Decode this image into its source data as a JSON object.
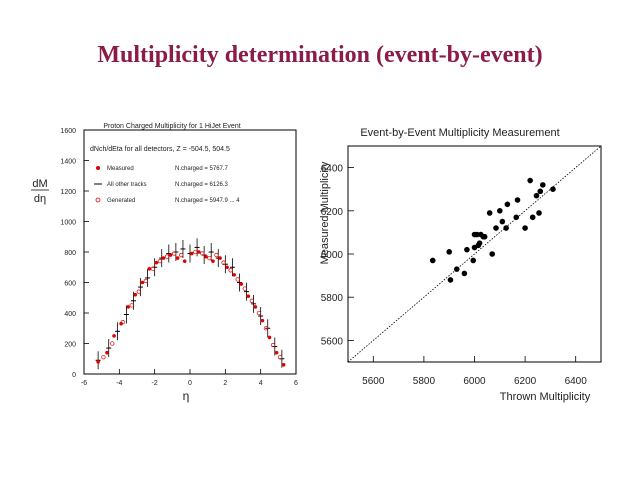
{
  "slide_title": "Multiplicity determination (event-by-event)",
  "colors": {
    "title": "#8b1c4a",
    "measured_marker": "#e00000",
    "axis": "#000000"
  },
  "chart_data": [
    {
      "type": "scatter",
      "title": "Proton Charged Multiplicity for 1 HiJet Event",
      "subtitle": "dNch/dEta for all detectors, Z = -504.5, 504.5",
      "xlabel": "η",
      "ylabel": "dM / dη",
      "xlim": [
        -6,
        6
      ],
      "ylim": [
        0,
        1600
      ],
      "x_ticks": [
        "-6",
        "-4",
        "-2",
        "0",
        "2",
        "4",
        "6"
      ],
      "y_ticks": [
        "0",
        "200",
        "400",
        "600",
        "800",
        "1000",
        "1200",
        "1400",
        "1600"
      ],
      "grid": false,
      "legend_position": "top-left",
      "legend": [
        {
          "name": "Measured",
          "value_text": "N.charged = 5767.7",
          "marker": "red-dot"
        },
        {
          "name": "All other tracks",
          "value_text": "N.charged = 6126.3",
          "marker": "black-dash"
        },
        {
          "name": "Generated",
          "value_text": "N.charged = 5947.9 ... 4",
          "marker": "red-open-circle"
        }
      ],
      "series": [
        {
          "name": "Measured",
          "x": [
            -5.2,
            -4.7,
            -4.3,
            -3.9,
            -3.5,
            -3.1,
            -2.7,
            -2.3,
            -1.9,
            -1.5,
            -1.1,
            -0.7,
            -0.3,
            0.1,
            0.5,
            0.9,
            1.3,
            1.7,
            2.1,
            2.5,
            2.9,
            3.3,
            3.7,
            4.1,
            4.5,
            4.9,
            5.3
          ],
          "y": [
            80,
            140,
            250,
            330,
            440,
            520,
            600,
            690,
            730,
            760,
            780,
            760,
            740,
            790,
            800,
            770,
            740,
            760,
            700,
            650,
            590,
            510,
            440,
            350,
            240,
            140,
            60
          ]
        },
        {
          "name": "All other tracks",
          "x": [
            -5.2,
            -4.6,
            -4.1,
            -3.6,
            -3.2,
            -2.8,
            -2.4,
            -2.0,
            -1.6,
            -1.2,
            -0.8,
            -0.4,
            0.0,
            0.4,
            0.8,
            1.2,
            1.6,
            2.0,
            2.4,
            2.8,
            3.2,
            3.6,
            4.0,
            4.4,
            4.8,
            5.2
          ],
          "y": [
            90,
            170,
            280,
            390,
            480,
            570,
            630,
            700,
            760,
            790,
            800,
            820,
            790,
            830,
            780,
            800,
            760,
            720,
            700,
            600,
            540,
            460,
            380,
            300,
            180,
            100
          ]
        },
        {
          "name": "Generated",
          "x": [
            -4.9,
            -4.4,
            -3.8,
            -3.3,
            -2.9,
            -2.5,
            -2.1,
            -1.7,
            -1.3,
            -0.9,
            -0.5,
            0.3,
            0.7,
            1.1,
            1.5,
            1.9,
            2.3,
            2.7,
            3.1,
            3.5,
            3.9,
            4.3,
            4.7,
            5.1
          ],
          "y": [
            110,
            200,
            340,
            450,
            540,
            610,
            690,
            740,
            770,
            790,
            780,
            800,
            790,
            760,
            780,
            730,
            680,
            620,
            560,
            480,
            400,
            300,
            190,
            110
          ]
        }
      ]
    },
    {
      "type": "scatter",
      "title": "Event-by-Event Multiplicity Measurement",
      "xlabel": "Thrown Multiplicity",
      "ylabel": "Measured Multiplicity",
      "xlim": [
        5500,
        6500
      ],
      "ylim": [
        5500,
        6500
      ],
      "x_ticks": [
        "5600",
        "5800",
        "6000",
        "6200",
        "6400"
      ],
      "y_ticks": [
        "5600",
        "5800",
        "6000",
        "6200",
        "6400"
      ],
      "grid": false,
      "reference_line": "y = x",
      "series": [
        {
          "name": "",
          "x": [
            5835,
            5900,
            5905,
            5930,
            5960,
            5970,
            5995,
            6000,
            6000,
            6010,
            6015,
            6020,
            6025,
            6035,
            6040,
            6060,
            6070,
            6085,
            6100,
            6110,
            6125,
            6130,
            6165,
            6170,
            6200,
            6220,
            6230,
            6245,
            6255,
            6260,
            6270,
            6310
          ],
          "y": [
            5970,
            6010,
            5880,
            5930,
            5910,
            6020,
            5970,
            6090,
            6030,
            6090,
            6040,
            6050,
            6090,
            6080,
            6080,
            6190,
            6000,
            6120,
            6200,
            6150,
            6120,
            6230,
            6170,
            6250,
            6120,
            6340,
            6170,
            6270,
            6190,
            6290,
            6320,
            6300
          ]
        }
      ]
    }
  ]
}
